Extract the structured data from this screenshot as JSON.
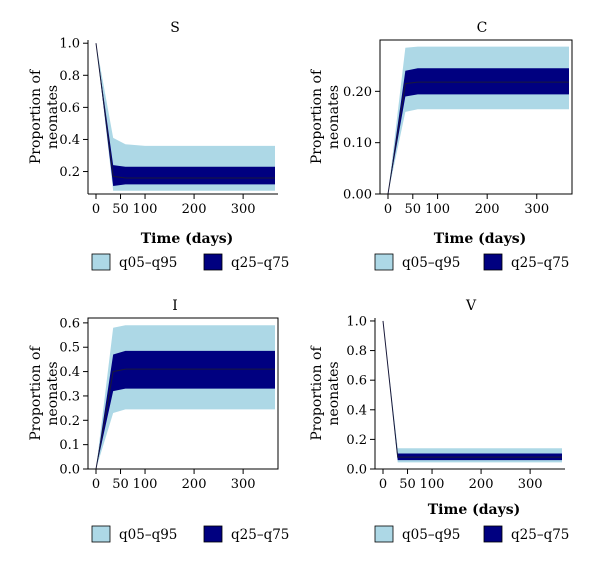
{
  "colors": {
    "outer_band": "#add8e6",
    "inner_band": "#000080",
    "median_line": "#1a1a3a",
    "axis": "#000000"
  },
  "legend": [
    {
      "label": "q05–q95",
      "color": "#add8e6"
    },
    {
      "label": "q25–q75",
      "color": "#000080"
    }
  ],
  "chart_data": [
    {
      "type": "area",
      "title": "S",
      "xlabel": "Time (days)",
      "ylabel": [
        "Proportion of",
        "neonates"
      ],
      "xlim": [
        0,
        365
      ],
      "ylim": [
        0.06,
        1.02
      ],
      "xticks": [
        0,
        50,
        100,
        200,
        300
      ],
      "yticks": [
        0.2,
        0.4,
        0.6,
        0.8,
        1.0
      ],
      "ytick_labels": [
        "0.2",
        "0.4",
        "0.6",
        "0.8",
        "1.0"
      ],
      "frame": "L",
      "grid": false,
      "x": [
        0,
        35,
        60,
        100,
        200,
        300,
        365
      ],
      "series": [
        {
          "band": "q05-q95",
          "lower": [
            1.0,
            0.08,
            0.08,
            0.08,
            0.08,
            0.08,
            0.08
          ],
          "upper": [
            1.0,
            0.41,
            0.37,
            0.36,
            0.36,
            0.36,
            0.36
          ]
        },
        {
          "band": "q25-q75",
          "lower": [
            1.0,
            0.11,
            0.12,
            0.12,
            0.12,
            0.12,
            0.12
          ],
          "upper": [
            1.0,
            0.24,
            0.23,
            0.23,
            0.23,
            0.23,
            0.23
          ]
        },
        {
          "band": "median",
          "values": [
            1.0,
            0.17,
            0.16,
            0.16,
            0.16,
            0.16,
            0.16
          ]
        }
      ]
    },
    {
      "type": "area",
      "title": "C",
      "xlabel": "Time (days)",
      "ylabel": [
        "Proportion of",
        "neonates"
      ],
      "xlim": [
        0,
        365
      ],
      "ylim": [
        0,
        0.3
      ],
      "xticks": [
        0,
        50,
        100,
        200,
        300
      ],
      "yticks": [
        0.0,
        0.1,
        0.2
      ],
      "ytick_labels": [
        "0.00",
        "0.10",
        "0.20"
      ],
      "frame": "box",
      "grid": false,
      "x": [
        0,
        35,
        60,
        100,
        200,
        300,
        365
      ],
      "series": [
        {
          "band": "q05-q95",
          "lower": [
            0.0,
            0.16,
            0.165,
            0.165,
            0.165,
            0.165,
            0.165
          ],
          "upper": [
            0.0,
            0.285,
            0.287,
            0.287,
            0.287,
            0.287,
            0.287
          ]
        },
        {
          "band": "q25-q75",
          "lower": [
            0.0,
            0.19,
            0.194,
            0.194,
            0.194,
            0.194,
            0.194
          ],
          "upper": [
            0.0,
            0.24,
            0.245,
            0.245,
            0.245,
            0.245,
            0.245
          ]
        },
        {
          "band": "median",
          "values": [
            0.0,
            0.215,
            0.218,
            0.218,
            0.218,
            0.218,
            0.218
          ]
        }
      ]
    },
    {
      "type": "area",
      "title": "I",
      "xlabel": "",
      "ylabel": [
        "Proportion of",
        "neonates"
      ],
      "xlim": [
        0,
        365
      ],
      "ylim": [
        0,
        0.62
      ],
      "xticks": [
        0,
        50,
        100,
        200,
        300
      ],
      "yticks": [
        0.0,
        0.1,
        0.2,
        0.3,
        0.4,
        0.5,
        0.6
      ],
      "ytick_labels": [
        "0.0",
        "0.1",
        "0.2",
        "0.3",
        "0.4",
        "0.5",
        "0.6"
      ],
      "frame": "box",
      "grid": false,
      "x": [
        0,
        35,
        60,
        100,
        200,
        300,
        365
      ],
      "series": [
        {
          "band": "q05-q95",
          "lower": [
            0.0,
            0.23,
            0.245,
            0.245,
            0.245,
            0.245,
            0.245
          ],
          "upper": [
            0.0,
            0.58,
            0.59,
            0.59,
            0.59,
            0.59,
            0.59
          ]
        },
        {
          "band": "q25-q75",
          "lower": [
            0.0,
            0.32,
            0.33,
            0.33,
            0.33,
            0.33,
            0.33
          ],
          "upper": [
            0.0,
            0.47,
            0.485,
            0.485,
            0.485,
            0.485,
            0.485
          ]
        },
        {
          "band": "median",
          "values": [
            0.0,
            0.4,
            0.41,
            0.41,
            0.41,
            0.41,
            0.41
          ]
        }
      ]
    },
    {
      "type": "area",
      "title": "V",
      "xlabel": "Time (days)",
      "ylabel": [
        "Proportion of",
        "neonates"
      ],
      "xlim": [
        0,
        365
      ],
      "ylim": [
        0,
        1.02
      ],
      "xticks": [
        0,
        50,
        100,
        200,
        300
      ],
      "yticks": [
        0.0,
        0.2,
        0.4,
        0.6,
        0.8,
        1.0
      ],
      "ytick_labels": [
        "0.0",
        "0.2",
        "0.4",
        "0.6",
        "0.8",
        "1.0"
      ],
      "frame": "L",
      "grid": false,
      "x": [
        0,
        30,
        60,
        100,
        200,
        300,
        365
      ],
      "series": [
        {
          "band": "q05-q95",
          "lower": [
            1.0,
            0.045,
            0.045,
            0.045,
            0.045,
            0.045,
            0.045
          ],
          "upper": [
            1.0,
            0.14,
            0.14,
            0.14,
            0.14,
            0.14,
            0.14
          ]
        },
        {
          "band": "q25-q75",
          "lower": [
            1.0,
            0.06,
            0.06,
            0.06,
            0.06,
            0.06,
            0.06
          ],
          "upper": [
            1.0,
            0.105,
            0.105,
            0.105,
            0.105,
            0.105,
            0.105
          ]
        },
        {
          "band": "median",
          "values": [
            1.0,
            0.08,
            0.08,
            0.08,
            0.08,
            0.08,
            0.08
          ]
        }
      ]
    }
  ]
}
